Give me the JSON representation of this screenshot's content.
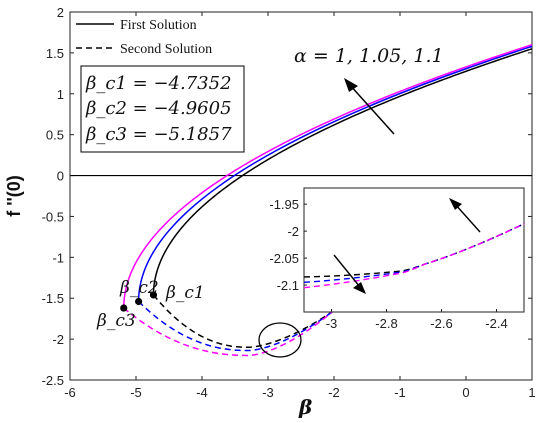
{
  "chart_data": {
    "type": "line",
    "xlabel": "β",
    "ylabel": "f ''(0)",
    "xlim": [
      -6,
      1
    ],
    "ylim": [
      -2.5,
      2
    ],
    "xticks": [
      -6,
      -5,
      -4,
      -3,
      -2,
      -1,
      0,
      1
    ],
    "yticks": [
      2,
      1.5,
      1,
      0.5,
      0,
      -0.5,
      -1,
      -1.5,
      -2,
      -2.5
    ],
    "legend": {
      "placement": "top-left",
      "entries": [
        {
          "label": "First Solution",
          "style": "solid"
        },
        {
          "label": "Second Solution",
          "style": "dashed"
        }
      ]
    },
    "critical_box": [
      "β_c1 = −4.7352",
      "β_c2 = −4.9605",
      "β_c3 = −5.1857"
    ],
    "annotations": {
      "alpha_label": "α = 1, 1.05, 1.1",
      "point_labels": [
        "β_c1",
        "β_c2",
        "β_c3"
      ]
    },
    "series": [
      {
        "alpha": 1.0,
        "color": "#000000",
        "beta_c": -4.7352,
        "f_c": -1.46,
        "first_end": 1.55,
        "second_min": -2.1
      },
      {
        "alpha": 1.05,
        "color": "#0000ff",
        "beta_c": -4.9605,
        "f_c": -1.54,
        "first_end": 1.58,
        "second_min": -2.14
      },
      {
        "alpha": 1.1,
        "color": "#ff00ff",
        "beta_c": -5.1857,
        "f_c": -1.62,
        "first_end": 1.6,
        "second_min": -2.2
      }
    ],
    "inset": {
      "xlim": [
        -3.1,
        -2.3
      ],
      "ylim": [
        -2.15,
        -1.92
      ],
      "xticks": [
        -3,
        -2.8,
        -2.6,
        -2.4
      ],
      "yticks": [
        -1.95,
        -2,
        -2.05,
        -2.1
      ]
    }
  }
}
